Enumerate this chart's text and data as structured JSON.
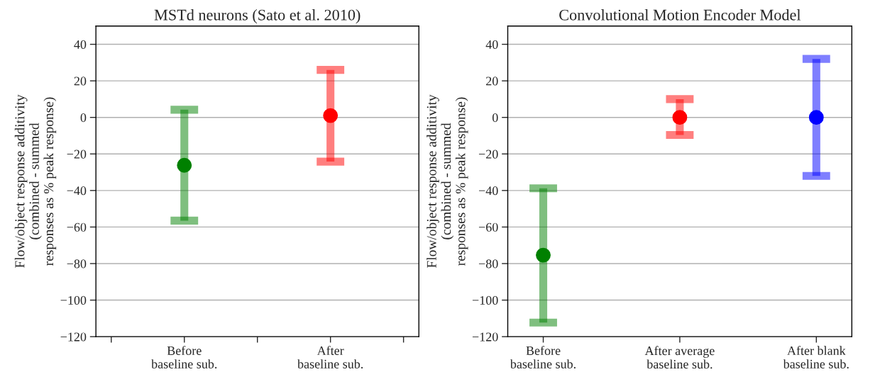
{
  "chart_data": [
    {
      "type": "scatter",
      "title": "MSTd neurons (Sato et al. 2010)",
      "ylabel": "Flow/object response additivity\n(combined - summed\nresponses as % peak response)",
      "categories": [
        null,
        "Before\nbaseline sub.",
        null,
        "After\nbaseline sub.",
        null
      ],
      "ylim": [
        -120,
        50
      ],
      "yticks": [
        {
          "value": -120,
          "label": "−120"
        },
        {
          "value": -100,
          "label": "−100"
        },
        {
          "value": -80,
          "label": "−80"
        },
        {
          "value": -60,
          "label": "−60"
        },
        {
          "value": -40,
          "label": "−40"
        },
        {
          "value": -20,
          "label": "−20"
        },
        0,
        20,
        40
      ],
      "grid": "y",
      "marker": "circle",
      "series": [
        {
          "colors": [
            null,
            "#008000",
            null,
            "#ff0000",
            null
          ],
          "values": [
            null,
            -26.2,
            null,
            1,
            null
          ],
          "errors": [
            null,
            [
              -56.5,
              4.2
            ],
            null,
            [
              -24.2,
              26
            ],
            null
          ]
        }
      ]
    },
    {
      "type": "scatter",
      "title": "Convolutional Motion Encoder Model",
      "ylabel": "Flow/object response additivity\n(combined - summed\nresponses as % peak response)",
      "categories": [
        "Before\nbaseline sub.",
        "After average\nbaseline sub.",
        "After blank\nbaseline sub."
      ],
      "ylim": [
        -120,
        50
      ],
      "yticks": [
        {
          "value": -120,
          "label": "−120"
        },
        {
          "value": -100,
          "label": "−100"
        },
        {
          "value": -80,
          "label": "−80"
        },
        {
          "value": -60,
          "label": "−60"
        },
        {
          "value": -40,
          "label": "−40"
        },
        {
          "value": -20,
          "label": "−20"
        },
        0,
        20,
        40
      ],
      "grid": "y",
      "marker": "circle",
      "series": [
        {
          "colors": [
            "#008000",
            "#ff0000",
            "#0000ff"
          ],
          "values": [
            -75.4,
            0,
            0
          ],
          "errors": [
            [
              -112.3,
              -38.8
            ],
            [
              -9.6,
              10
            ],
            [
              -32,
              32
            ]
          ]
        }
      ]
    }
  ]
}
